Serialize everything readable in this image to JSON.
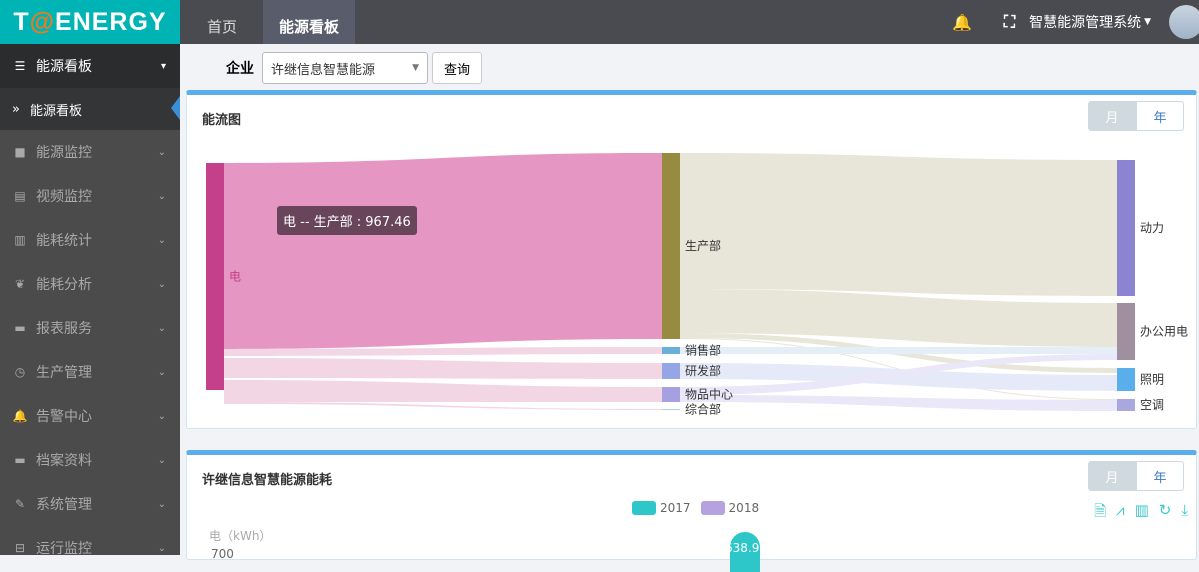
{
  "header": {
    "logo_text_a": "T",
    "logo_text_at": "@",
    "logo_text_b": "ENERGY",
    "tabs": [
      {
        "label": "首页"
      },
      {
        "label": "能源看板"
      }
    ],
    "system_name": "智慧能源管理系统",
    "icons": [
      "bell-icon",
      "fullscreen-icon",
      "caret-down-icon",
      "avatar"
    ]
  },
  "sidebar": {
    "items": [
      {
        "label": "能源看板",
        "icon": "☰"
      },
      {
        "label": "能源监控",
        "icon": "■"
      },
      {
        "label": "视频监控",
        "icon": "▤"
      },
      {
        "label": "能耗统计",
        "icon": "▥"
      },
      {
        "label": "能耗分析",
        "icon": "❦"
      },
      {
        "label": "报表服务",
        "icon": "▬"
      },
      {
        "label": "生产管理",
        "icon": "◷"
      },
      {
        "label": "告警中心",
        "icon": "🔔"
      },
      {
        "label": "档案资料",
        "icon": "▬"
      },
      {
        "label": "系统管理",
        "icon": "✎"
      },
      {
        "label": "运行监控",
        "icon": "⊟"
      }
    ],
    "sub_item": "能源看板"
  },
  "filter": {
    "label": "企业",
    "value": "许继信息智慧能源",
    "query": "查询"
  },
  "panel1": {
    "title": "能流图",
    "month": "月",
    "year": "年",
    "tooltip": "电 -- 生产部 : 967.46",
    "nodes": [
      {
        "name": "电",
        "color": "#c4408a"
      },
      {
        "name": "生产部",
        "color": "#968b3e"
      },
      {
        "name": "销售部",
        "color": "#6ab0d6"
      },
      {
        "name": "研发部",
        "color": "#96a6e4"
      },
      {
        "name": "物品中心",
        "color": "#a6a0e0"
      },
      {
        "name": "综合部",
        "color": "#a8d8d8"
      },
      {
        "name": "动力",
        "color": "#8c84d0"
      },
      {
        "name": "办公用电",
        "color": "#a0909f"
      },
      {
        "name": "照明",
        "color": "#5aaeec"
      },
      {
        "name": "空调",
        "color": "#a8a8de"
      }
    ],
    "links": [
      {
        "source": "电",
        "target": "生产部",
        "value": 967.46
      },
      {
        "source": "电",
        "target": "销售部"
      },
      {
        "source": "电",
        "target": "研发部"
      },
      {
        "source": "电",
        "target": "物品中心"
      },
      {
        "source": "电",
        "target": "综合部"
      },
      {
        "source": "生产部",
        "target": "动力"
      },
      {
        "source": "生产部",
        "target": "办公用电"
      },
      {
        "source": "生产部",
        "target": "照明"
      },
      {
        "source": "生产部",
        "target": "空调"
      },
      {
        "source": "销售部",
        "target": "办公用电"
      },
      {
        "source": "研发部",
        "target": "照明"
      },
      {
        "source": "物品中心",
        "target": "办公用电"
      },
      {
        "source": "物品中心",
        "target": "空调"
      }
    ]
  },
  "panel2": {
    "title": "许继信息智慧能源能耗",
    "month": "月",
    "year": "年",
    "legend": [
      {
        "name": "2017",
        "color": "#2ec7c9"
      },
      {
        "name": "2018",
        "color": "#b6a2de"
      }
    ],
    "yaxis_label": "电（kWh）",
    "ytick_top": "700",
    "bar_label": "638.93",
    "tools": [
      "data-view-icon",
      "line-chart-icon",
      "bar-chart-icon",
      "refresh-icon",
      "download-icon"
    ]
  }
}
